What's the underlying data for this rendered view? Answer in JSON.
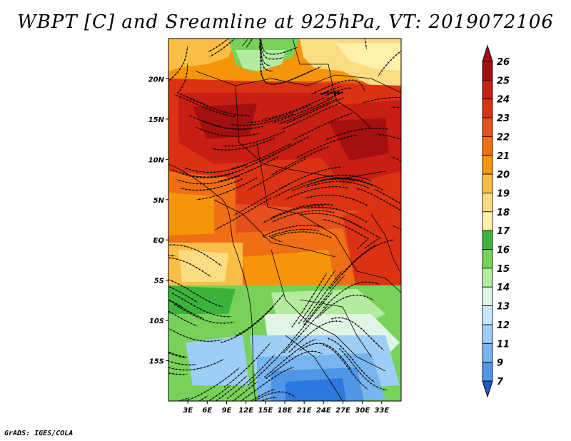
{
  "title": "WBPT [C] and Sreamline at 925hPa, VT: 2019072106",
  "footer": "GrADS: IGES/COLA",
  "map": {
    "lon_range": [
      0,
      36
    ],
    "lat_range": [
      -20,
      25
    ],
    "lon_ticks": [
      {
        "value": 3,
        "label": "3E"
      },
      {
        "value": 6,
        "label": "6E"
      },
      {
        "value": 9,
        "label": "9E"
      },
      {
        "value": 12,
        "label": "12E"
      },
      {
        "value": 15,
        "label": "15E"
      },
      {
        "value": 18,
        "label": "18E"
      },
      {
        "value": 21,
        "label": "21E"
      },
      {
        "value": 24,
        "label": "24E"
      },
      {
        "value": 27,
        "label": "27E"
      },
      {
        "value": 30,
        "label": "30E"
      },
      {
        "value": 33,
        "label": "33E"
      }
    ],
    "lat_ticks": [
      {
        "value": 20,
        "label": "20N"
      },
      {
        "value": 15,
        "label": "15N"
      },
      {
        "value": 10,
        "label": "10N"
      },
      {
        "value": 5,
        "label": "5N"
      },
      {
        "value": 0,
        "label": "EQ"
      },
      {
        "value": -5,
        "label": "5S"
      },
      {
        "value": -10,
        "label": "10S"
      },
      {
        "value": -15,
        "label": "15S"
      }
    ]
  },
  "colorbar": {
    "levels": [
      {
        "label": "26",
        "color": "#a50f0f"
      },
      {
        "label": "25",
        "color": "#c81e14"
      },
      {
        "label": "24",
        "color": "#dc3214"
      },
      {
        "label": "23",
        "color": "#e6501e"
      },
      {
        "label": "22",
        "color": "#f06e14"
      },
      {
        "label": "21",
        "color": "#f5960a"
      },
      {
        "label": "20",
        "color": "#fabe46"
      },
      {
        "label": "19",
        "color": "#fadc82"
      },
      {
        "label": "18",
        "color": "#fff0aa"
      },
      {
        "label": "17",
        "color": "#3cb43c"
      },
      {
        "label": "16",
        "color": "#78d25a"
      },
      {
        "label": "15",
        "color": "#b4eba0"
      },
      {
        "label": "14",
        "color": "#e1f5e6"
      },
      {
        "label": "13",
        "color": "#c8e6fa"
      },
      {
        "label": "12",
        "color": "#9ecdf5"
      },
      {
        "label": "11",
        "color": "#78b4f0"
      },
      {
        "label": "9",
        "color": "#5096e6"
      },
      {
        "label": "7",
        "color": "#2d78dc"
      }
    ],
    "bottom_color": "#1e5ad2"
  }
}
